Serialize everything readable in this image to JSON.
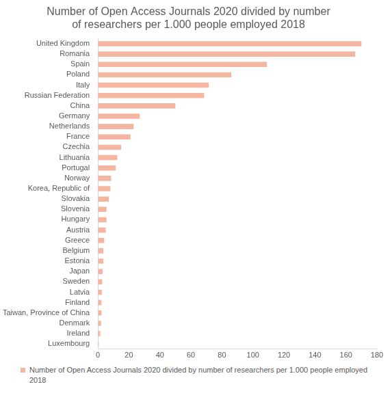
{
  "chart_data": {
    "type": "bar",
    "orientation": "horizontal",
    "title": [
      "Number of Open Access Journals 2020 divided by number",
      "of researchers per 1.000 people employed 2018"
    ],
    "categories": [
      "United Kingdom",
      "Romania",
      "Spain",
      "Poland",
      "Italy",
      "Russian Federation",
      "China",
      "Germany",
      "Netherlands",
      "France",
      "Czechia",
      "Lithuania",
      "Portugal",
      "Norway",
      "Korea, Republic of",
      "Slovakia",
      "Slovenia",
      "Hungary",
      "Austria",
      "Greece",
      "Belgium",
      "Estonia",
      "Japan",
      "Sweden",
      "Latvia",
      "Finland",
      "Taiwan, Province of China",
      "Denmark",
      "Ireland",
      "Luxembourg"
    ],
    "series": [
      {
        "name": "Number of Open Access Journals 2020 divided by number of researchers per 1.000 people employed 2018",
        "color": "#f4b6a0",
        "values": [
          170,
          166,
          109,
          86,
          71.5,
          68.5,
          50,
          27,
          23,
          21,
          15,
          12.5,
          11.5,
          8.5,
          8,
          7,
          5.5,
          5.5,
          5,
          4,
          3.5,
          3.5,
          3,
          2.7,
          2.5,
          2.3,
          2.3,
          2,
          1.5,
          0.5
        ]
      }
    ],
    "xlim": [
      0,
      180
    ],
    "xticks": [
      0,
      20,
      40,
      60,
      80,
      100,
      120,
      140,
      160,
      180
    ],
    "grid": false,
    "legend": "bottom"
  }
}
